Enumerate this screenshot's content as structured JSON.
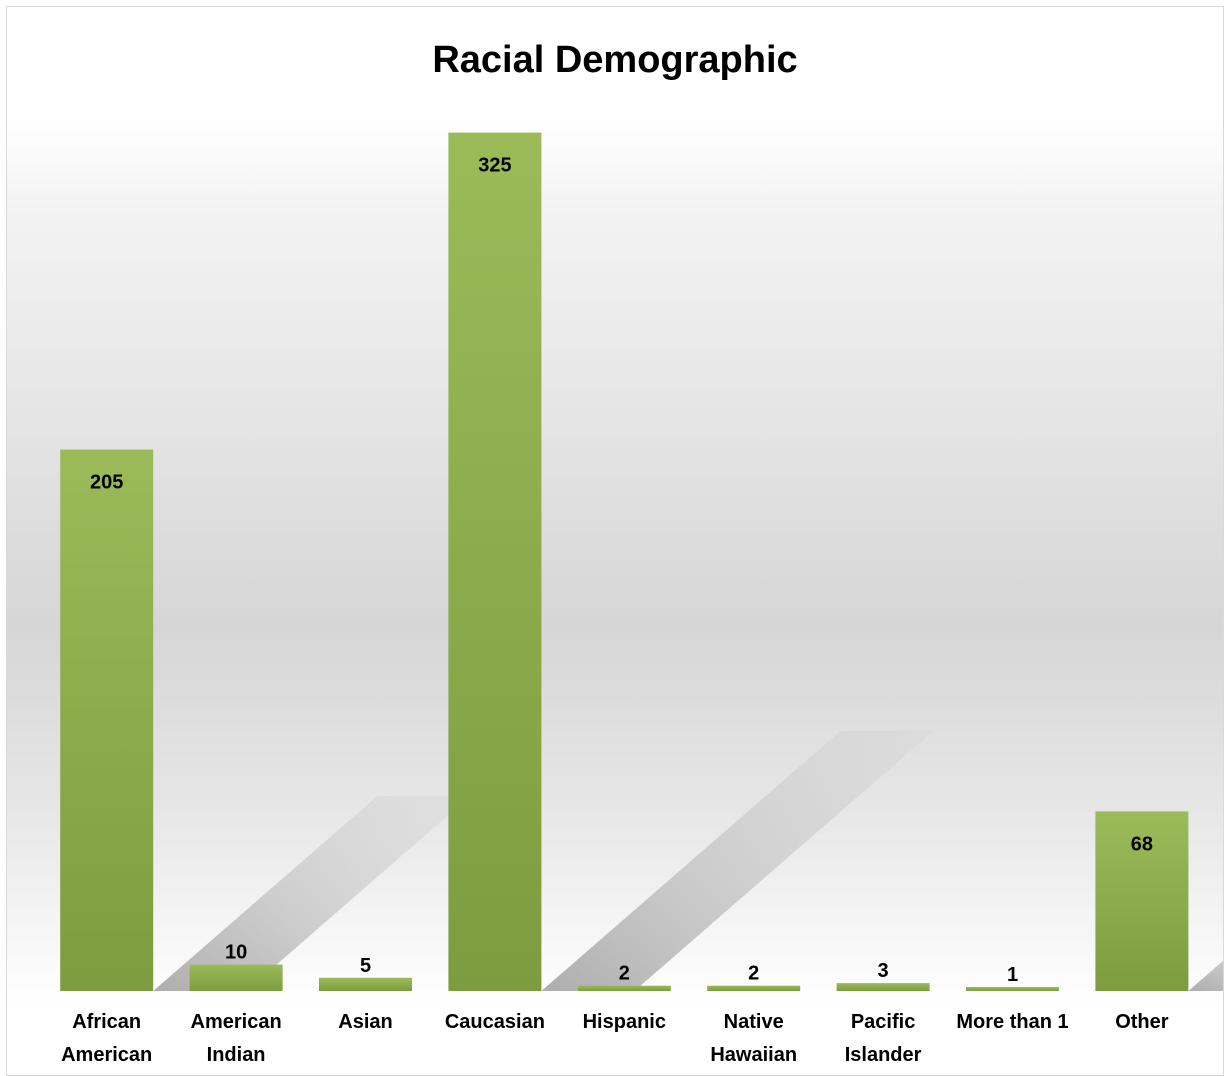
{
  "chart_data": {
    "type": "bar",
    "title": "Racial Demographic",
    "xlabel": "",
    "ylabel": "",
    "categories": [
      [
        "African",
        "American"
      ],
      [
        "American",
        "Indian"
      ],
      [
        "Asian"
      ],
      [
        "Caucasian"
      ],
      [
        "Hispanic"
      ],
      [
        "Native",
        "Hawaiian"
      ],
      [
        "Pacific",
        "Islander"
      ],
      [
        "More than 1"
      ],
      [
        "Other"
      ]
    ],
    "values": [
      205,
      10,
      5,
      325,
      2,
      2,
      3,
      1,
      68
    ],
    "ylim": [
      0,
      340
    ],
    "grid": false,
    "legend": "none",
    "colors": {
      "bar_top": "#9bbb59",
      "bar_bottom": "#7d9c3f",
      "shadow": "#b3b3b3"
    }
  }
}
